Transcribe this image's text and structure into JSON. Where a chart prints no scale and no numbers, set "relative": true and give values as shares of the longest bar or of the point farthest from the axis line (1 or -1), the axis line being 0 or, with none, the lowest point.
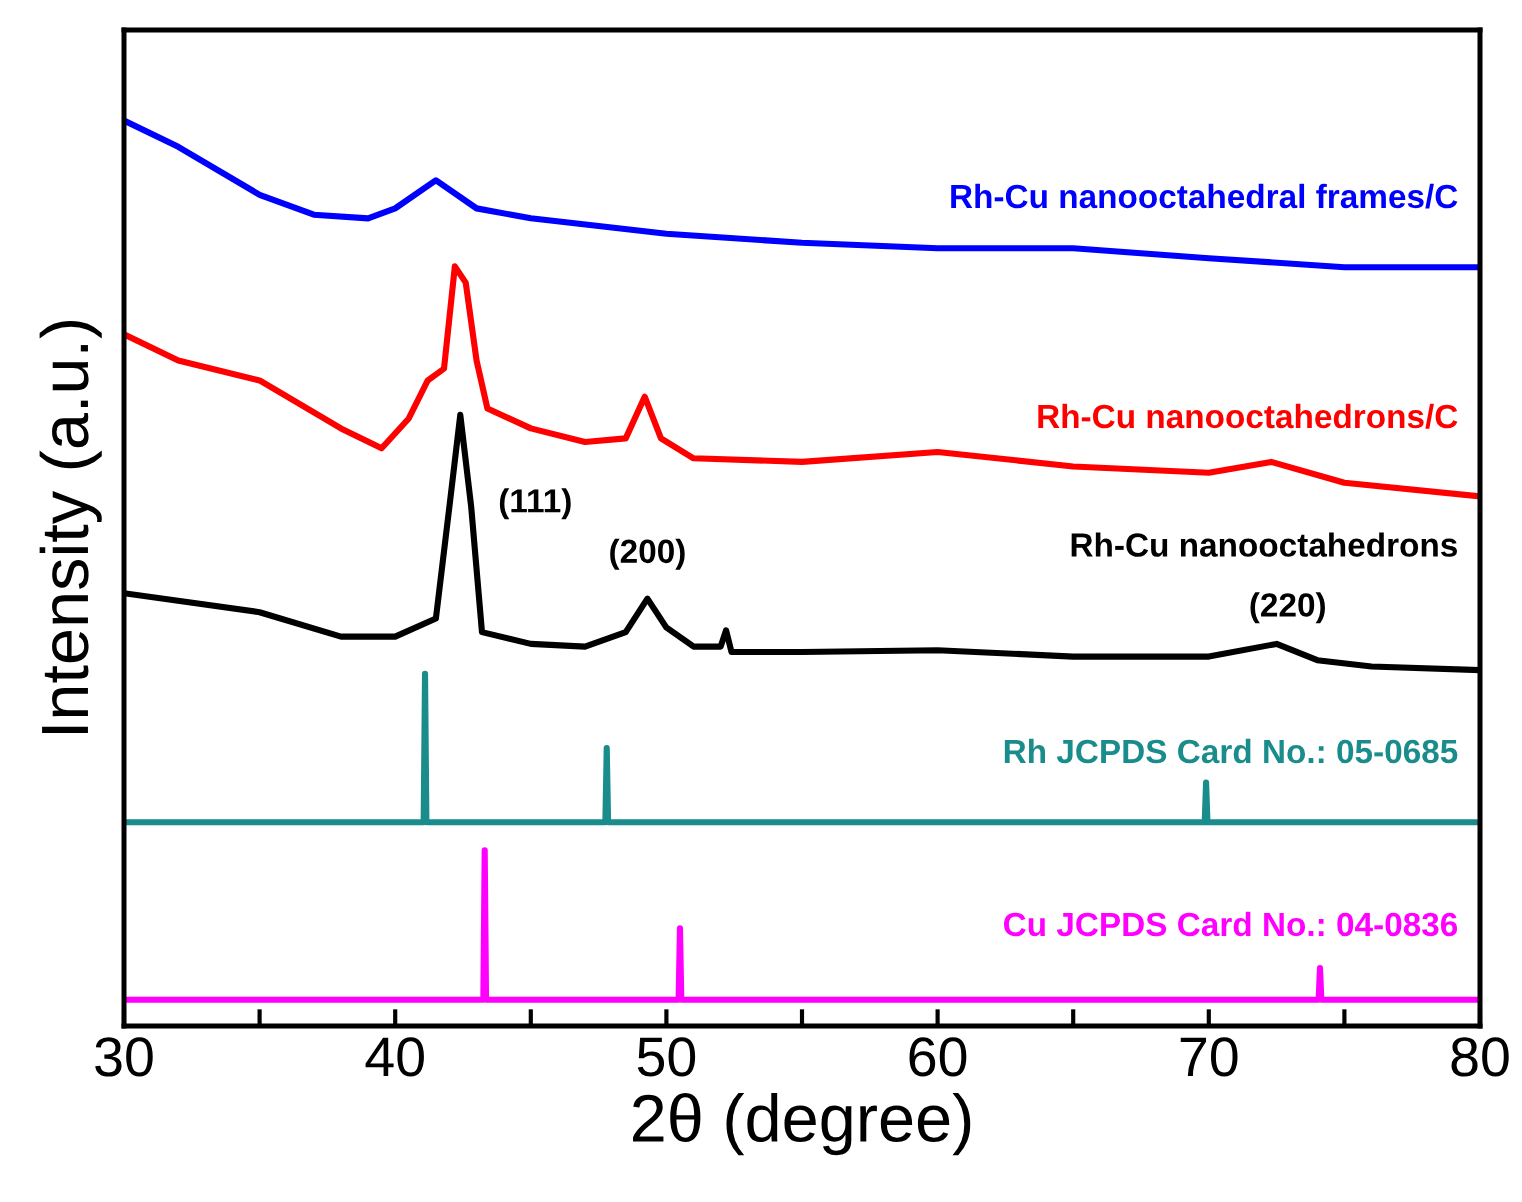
{
  "chart_data": {
    "type": "line",
    "relative": true,
    "xlabel": "2θ (degree)",
    "ylabel": "Intensity (a.u.)",
    "xlim": [
      30,
      80
    ],
    "xticks": [
      30,
      {
        "value": 35,
        "label": null
      },
      40,
      {
        "value": 45,
        "label": null
      },
      50,
      {
        "value": 55,
        "label": null
      },
      60,
      {
        "value": 65,
        "label": null
      },
      70,
      {
        "value": 75,
        "label": null
      },
      80
    ],
    "legend": false,
    "grid": false,
    "marker": "none",
    "line_style": "solid",
    "tick_labels": "x",
    "series": [
      {
        "name": "Rh-Cu nanooctahedral frames/C",
        "color": "#0000ff",
        "x": [
          30,
          32,
          35,
          37,
          39,
          40,
          41.5,
          43,
          45,
          50,
          55,
          60,
          65,
          70,
          75,
          80
        ],
        "values": [
          1.0,
          0.971,
          0.918,
          0.896,
          0.892,
          0.903,
          0.934,
          0.903,
          0.892,
          0.875,
          0.865,
          0.859,
          0.859,
          0.848,
          0.838,
          0.838
        ]
      },
      {
        "name": "Rh-Cu nanooctahedrons/C",
        "color": "#ff0000",
        "x": [
          30,
          32,
          35,
          38,
          39.5,
          40.5,
          41.2,
          41.8,
          42.2,
          42.6,
          43,
          43.4,
          45,
          47,
          48.5,
          49.2,
          49.8,
          51,
          55,
          60,
          65,
          70,
          72.3,
          75,
          80
        ],
        "values": [
          0.764,
          0.735,
          0.713,
          0.66,
          0.638,
          0.671,
          0.713,
          0.726,
          0.839,
          0.821,
          0.735,
          0.682,
          0.66,
          0.645,
          0.649,
          0.695,
          0.649,
          0.627,
          0.623,
          0.634,
          0.618,
          0.611,
          0.623,
          0.6,
          0.585
        ]
      },
      {
        "name": "Rh-Cu nanooctahedrons",
        "color": "#000000",
        "x": [
          30,
          35,
          38,
          40,
          41.5,
          42,
          42.4,
          42.8,
          43.2,
          45,
          47,
          48.5,
          49.3,
          50,
          51,
          52,
          52.2,
          52.4,
          55,
          60,
          65,
          70,
          72.5,
          74,
          76,
          80
        ],
        "values": [
          0.478,
          0.457,
          0.43,
          0.43,
          0.45,
          0.574,
          0.675,
          0.574,
          0.435,
          0.422,
          0.419,
          0.435,
          0.472,
          0.44,
          0.419,
          0.419,
          0.437,
          0.413,
          0.413,
          0.415,
          0.408,
          0.408,
          0.422,
          0.404,
          0.397,
          0.393
        ]
      },
      {
        "name": "Rh JCPDS Card No.: 05-0685",
        "color": "#1a8c8c",
        "x": [
          30,
          41.05,
          41.1,
          41.15,
          47.75,
          47.8,
          47.85,
          69.85,
          69.9,
          69.95,
          80
        ],
        "values": [
          0.225,
          0.225,
          0.389,
          0.225,
          0.225,
          0.307,
          0.225,
          0.225,
          0.269,
          0.225,
          0.225
        ]
      },
      {
        "name": "Cu JCPDS Card No.: 04-0836",
        "color": "#ff00ff",
        "x": [
          30,
          43.25,
          43.3,
          43.35,
          50.45,
          50.5,
          50.55,
          74.05,
          74.1,
          74.15,
          80
        ],
        "values": [
          0.029,
          0.029,
          0.194,
          0.029,
          0.029,
          0.108,
          0.029,
          0.029,
          0.064,
          0.029,
          0.029
        ]
      }
    ],
    "annotations": [
      {
        "text": "(111)",
        "x": 42.4,
        "y": 0.675
      },
      {
        "text": "(200)",
        "x": 49.3,
        "y": 0.472
      },
      {
        "text": "(220)",
        "x": 72.5,
        "y": 0.422
      }
    ]
  }
}
